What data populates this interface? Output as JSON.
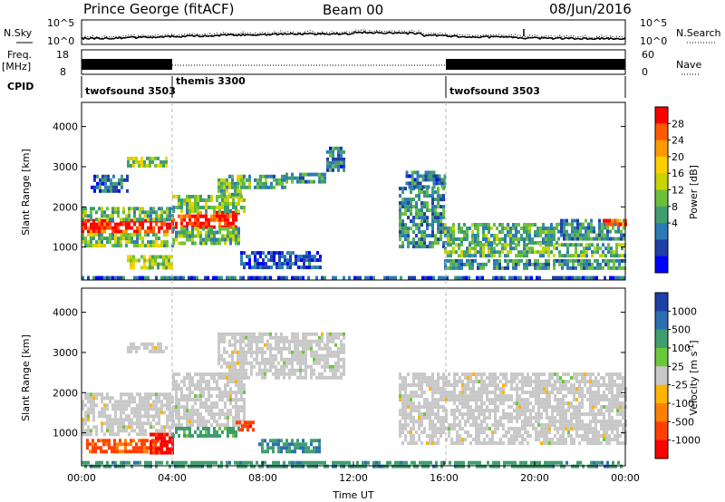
{
  "header": {
    "station": "Prince George (fitACF)",
    "beam": "Beam 00",
    "date": "08/Jun/2016"
  },
  "noise_panel": {
    "left_label": "N.Sky",
    "right_label": "N.Search",
    "y_ticks": [
      "10^5",
      "10^0"
    ],
    "right_ticks": [
      "10^5",
      "10^0"
    ]
  },
  "freq_panel": {
    "left_label_1": "Freq.",
    "left_label_2": "[MHz]",
    "right_label": "Nave",
    "y_ticks": [
      "18",
      "8"
    ],
    "right_ticks": [
      "60",
      "0"
    ]
  },
  "cpid_panel": {
    "label": "CPID",
    "segments": [
      {
        "start_h": 0,
        "end_h": 4,
        "name": "twofsound 3503"
      },
      {
        "start_h": 4,
        "end_h": 16,
        "name": "themis 3300"
      },
      {
        "start_h": 16,
        "end_h": 24,
        "name": "twofsound 3503"
      }
    ]
  },
  "chart_data": [
    {
      "type": "heatmap",
      "name": "Power",
      "ylabel": "Slant Range [km]",
      "y_ticks": [
        1000,
        2000,
        3000,
        4000
      ],
      "ylim": [
        180,
        4600
      ],
      "xlim_hours": [
        0,
        24
      ],
      "colorbar_label": "Power [dB]",
      "colorbar_ticks": [
        "28",
        "24",
        "20",
        "16",
        "12",
        "8",
        "4"
      ],
      "colorbar_colors": [
        "#ff0000",
        "#ff5a00",
        "#ff9a00",
        "#ffd000",
        "#c8d400",
        "#6cbf3a",
        "#3f9e6e",
        "#2c7bb6",
        "#1f3fa8",
        "#0000ff"
      ],
      "regions": [
        {
          "h0": 0.0,
          "h1": 4.0,
          "r0": 1350,
          "r1": 1700,
          "level": 0.95
        },
        {
          "h0": 0.0,
          "h1": 4.0,
          "r0": 1000,
          "r1": 1350,
          "level": 0.45
        },
        {
          "h0": 0.0,
          "h1": 4.0,
          "r0": 1700,
          "r1": 2000,
          "level": 0.4
        },
        {
          "h0": 0.4,
          "h1": 2.0,
          "r0": 2400,
          "r1": 2800,
          "level": 0.25
        },
        {
          "h0": 2.0,
          "h1": 3.8,
          "r0": 3000,
          "r1": 3250,
          "level": 0.5
        },
        {
          "h0": 4.0,
          "h1": 7.0,
          "r0": 1500,
          "r1": 1900,
          "level": 0.92
        },
        {
          "h0": 4.0,
          "h1": 7.0,
          "r0": 1050,
          "r1": 1500,
          "level": 0.4
        },
        {
          "h0": 4.0,
          "h1": 7.2,
          "r0": 1900,
          "r1": 2300,
          "level": 0.45
        },
        {
          "h0": 6.0,
          "h1": 7.2,
          "r0": 2300,
          "r1": 2800,
          "level": 0.45
        },
        {
          "h0": 7.0,
          "h1": 9.0,
          "r0": 2500,
          "r1": 2800,
          "level": 0.35
        },
        {
          "h0": 9.0,
          "h1": 10.8,
          "r0": 2600,
          "r1": 2850,
          "level": 0.3
        },
        {
          "h0": 10.8,
          "h1": 11.6,
          "r0": 2900,
          "r1": 3500,
          "level": 0.25
        },
        {
          "h0": 7.0,
          "h1": 10.5,
          "r0": 500,
          "r1": 900,
          "level": 0.15
        },
        {
          "h0": 2.0,
          "h1": 4.0,
          "r0": 450,
          "r1": 800,
          "level": 0.5
        },
        {
          "h0": 14.0,
          "h1": 16.0,
          "r0": 1000,
          "r1": 2500,
          "level": 0.3
        },
        {
          "h0": 14.3,
          "h1": 16.0,
          "r0": 2500,
          "r1": 2900,
          "level": 0.25
        },
        {
          "h0": 16.0,
          "h1": 21.0,
          "r0": 1100,
          "r1": 1600,
          "level": 0.38
        },
        {
          "h0": 16.0,
          "h1": 24.0,
          "r0": 750,
          "r1": 1100,
          "level": 0.42
        },
        {
          "h0": 21.0,
          "h1": 24.0,
          "r0": 1200,
          "r1": 1700,
          "level": 0.3
        },
        {
          "h0": 23.0,
          "h1": 24.0,
          "r0": 1550,
          "r1": 1700,
          "level": 0.85
        },
        {
          "h0": 16.0,
          "h1": 24.0,
          "r0": 450,
          "r1": 700,
          "level": 0.3
        },
        {
          "h0": 0.0,
          "h1": 24.0,
          "r0": 190,
          "r1": 280,
          "level": 0.2
        }
      ]
    },
    {
      "type": "heatmap",
      "name": "Velocity",
      "ylabel": "Slant Range [km]",
      "y_ticks": [
        1000,
        2000,
        3000,
        4000
      ],
      "ylim": [
        180,
        4600
      ],
      "xlim_hours": [
        0,
        24
      ],
      "xlabel": "Time UT",
      "x_ticks": [
        "00:00",
        "04:00",
        "08:00",
        "12:00",
        "16:00",
        "20:00",
        "00:00"
      ],
      "colorbar_label": "Velocity [m s^-1]",
      "colorbar_ticks": [
        "1000",
        "500",
        "100",
        "25",
        "-25",
        "-100",
        "-500",
        "-1000"
      ],
      "colorbar_colors": [
        "#1f3fa8",
        "#2c6fb0",
        "#3f9e6e",
        "#6cc83a",
        "#c8c8c8",
        "#ffb400",
        "#ff8000",
        "#ff4000",
        "#ff0000"
      ],
      "regions": [
        {
          "h0": 0.0,
          "h1": 4.0,
          "r0": 1000,
          "r1": 2000,
          "level": 0.0
        },
        {
          "h0": 4.0,
          "h1": 7.2,
          "r0": 1200,
          "r1": 2500,
          "level": 0.0
        },
        {
          "h0": 6.0,
          "h1": 11.6,
          "r0": 2400,
          "r1": 3500,
          "level": 0.0
        },
        {
          "h0": 2.0,
          "h1": 3.8,
          "r0": 3000,
          "r1": 3250,
          "level": 0.0
        },
        {
          "h0": 14.0,
          "h1": 24.0,
          "r0": 700,
          "r1": 2500,
          "level": 0.0
        },
        {
          "h0": 0.2,
          "h1": 3.5,
          "r0": 500,
          "r1": 850,
          "level": -0.55
        },
        {
          "h0": 3.0,
          "h1": 4.0,
          "r0": 500,
          "r1": 1000,
          "level": -0.85
        },
        {
          "h0": 6.8,
          "h1": 7.6,
          "r0": 1050,
          "r1": 1300,
          "level": -0.7
        },
        {
          "h0": 7.8,
          "h1": 10.5,
          "r0": 500,
          "r1": 850,
          "level": 0.5
        },
        {
          "h0": 4.0,
          "h1": 7.0,
          "r0": 950,
          "r1": 1150,
          "level": 0.35
        },
        {
          "h0": 0.0,
          "h1": 24.0,
          "r0": 190,
          "r1": 300,
          "level": 0.4
        }
      ]
    }
  ]
}
